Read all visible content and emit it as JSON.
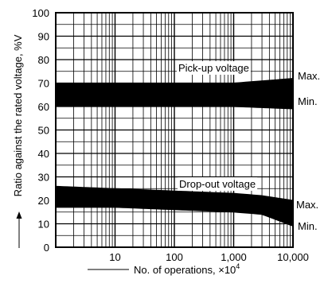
{
  "chart_data": {
    "type": "area",
    "xscale": "log",
    "xlim": [
      1,
      10000
    ],
    "ylim": [
      0,
      100
    ],
    "xlabel": "No. of operations, ×10",
    "xlabel_exp": "4",
    "ylabel": "Ratio against the rated voltage, %V",
    "grid": true,
    "x_tick_labels": [
      {
        "x": 10,
        "label": "10"
      },
      {
        "x": 100,
        "label": "100"
      },
      {
        "x": 1000,
        "label": "1,000"
      },
      {
        "x": 10000,
        "label": "10,000"
      }
    ],
    "y_ticks": [
      0,
      10,
      20,
      30,
      40,
      50,
      60,
      70,
      80,
      90,
      100
    ],
    "bands": [
      {
        "name": "Pick-up voltage",
        "max_label": "Max.",
        "min_label": "Min.",
        "x": [
          1,
          10,
          100,
          1000,
          10000
        ],
        "max": [
          70,
          70,
          70,
          70,
          72
        ],
        "min": [
          60,
          60,
          60,
          60,
          59
        ]
      },
      {
        "name": "Drop-out voltage",
        "max_label": "Max.",
        "min_label": "Min.",
        "x": [
          1,
          10,
          100,
          1000,
          3000,
          10000
        ],
        "max": [
          26,
          25,
          24,
          23,
          22,
          20
        ],
        "min": [
          17,
          17,
          16,
          15,
          14,
          9
        ]
      }
    ]
  }
}
